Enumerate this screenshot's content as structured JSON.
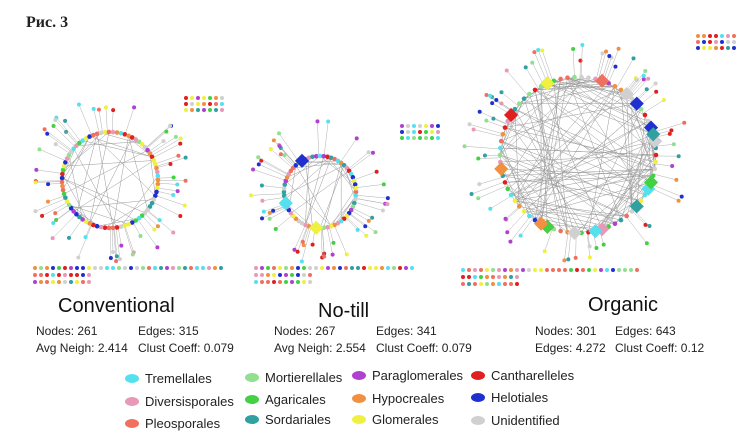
{
  "figure_label": "Рис. 3",
  "panels": [
    {
      "title": "Conventional",
      "stats": {
        "nodes_label": "Nodes: 261",
        "edges_label": "Edges: 315",
        "avg_label": "Avg Neigh: 2.414",
        "clust_label": "Clust Coeff: 0.079"
      }
    },
    {
      "title": "No-till",
      "stats": {
        "nodes_label": "Nodes: 267",
        "edges_label": "Edges: 341",
        "avg_label": "Avg Neigh: 2.554",
        "clust_label": "Clust Coeff: 0.079"
      }
    },
    {
      "title": "Organic",
      "stats": {
        "nodes_label": "Nodes: 301",
        "edges_label": "Edges: 643",
        "avg_label": "Edges: 4.272",
        "clust_label": "Clust Coeff: 0.12"
      }
    }
  ],
  "legend": [
    {
      "label": "Tremellales",
      "color": "#55e0f0"
    },
    {
      "label": "Diversisporales",
      "color": "#e898b8"
    },
    {
      "label": "Pleosporales",
      "color": "#f07060"
    },
    {
      "label": "Mortierellales",
      "color": "#90e090"
    },
    {
      "label": "Agaricales",
      "color": "#44d044"
    },
    {
      "label": "Sordariales",
      "color": "#30a0a0"
    },
    {
      "label": "Paraglomerales",
      "color": "#b040d0"
    },
    {
      "label": "Hypocreales",
      "color": "#f09040"
    },
    {
      "label": "Glomerales",
      "color": "#f0f040"
    },
    {
      "label": "Cantharelleles",
      "color": "#e02020"
    },
    {
      "label": "Helotiales",
      "color": "#2030d0"
    },
    {
      "label": "Unidentified",
      "color": "#d0d0d0"
    }
  ]
}
